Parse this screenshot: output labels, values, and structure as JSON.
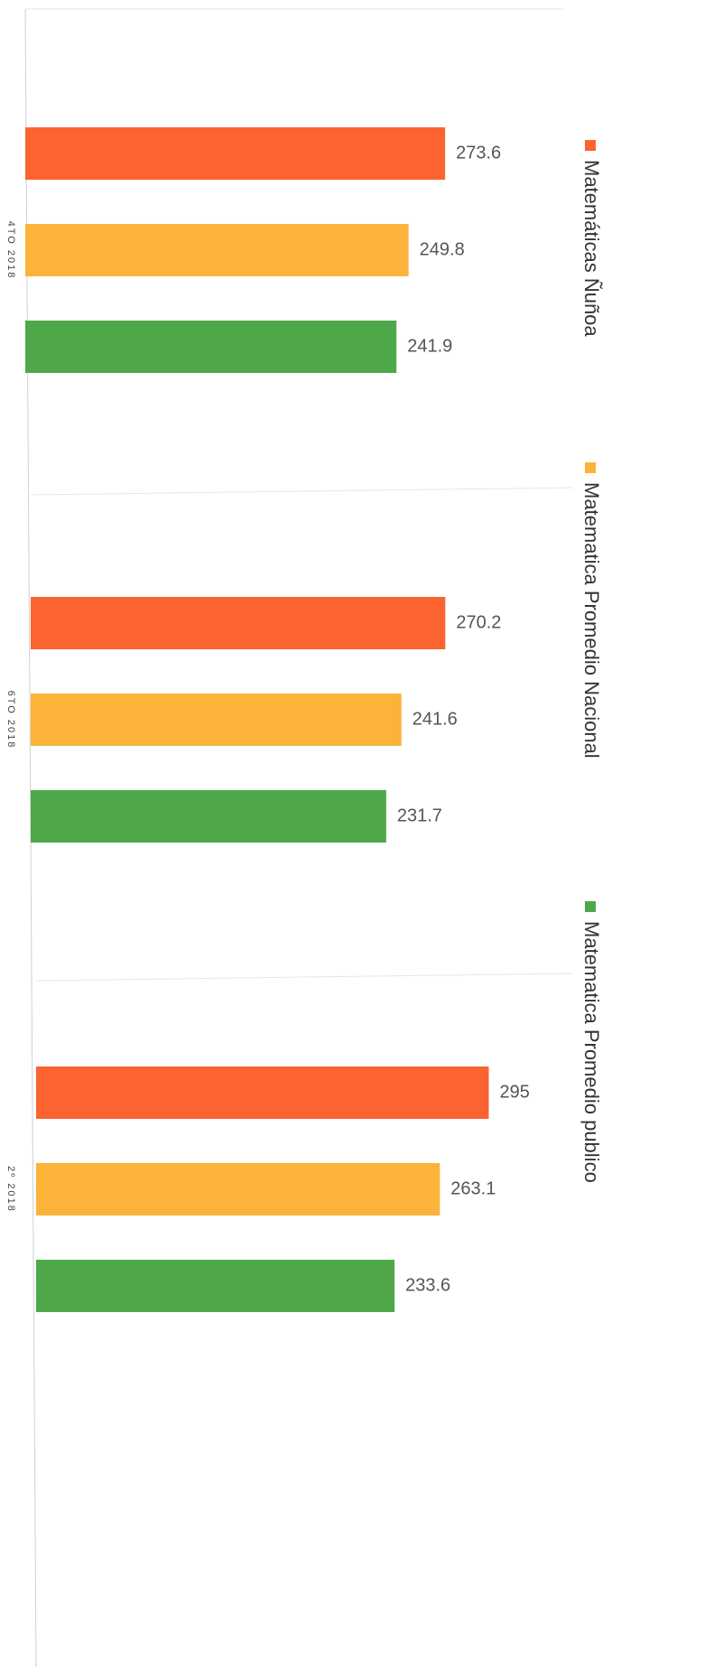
{
  "chart_data": {
    "type": "bar",
    "categories": [
      "4TO 2018",
      "6TO 2018",
      "2º 2018"
    ],
    "series": [
      {
        "name": "Matemáticas Ñuñoa",
        "color": "#fb6330",
        "values": [
          273.6,
          270.2,
          295
        ]
      },
      {
        "name": "Matematica Promedio Nacional",
        "color": "#fbb33a",
        "values": [
          249.8,
          241.6,
          263.1
        ]
      },
      {
        "name": "Matematica Promedio publico",
        "color": "#4ea84a",
        "values": [
          241.9,
          231.7,
          233.6
        ]
      }
    ]
  }
}
